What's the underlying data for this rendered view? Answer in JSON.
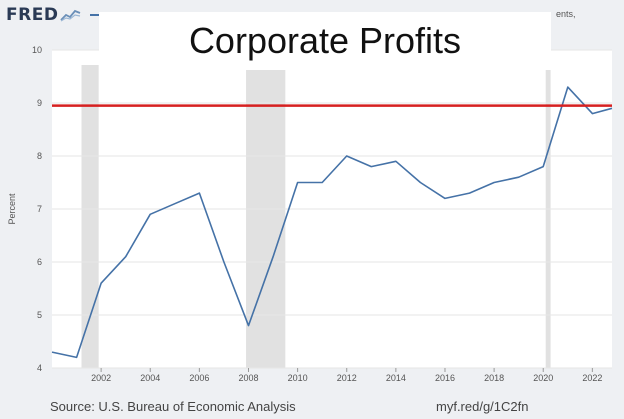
{
  "header": {
    "logo": "FRED",
    "header_tail": "ents,"
  },
  "title": "Corporate Profits",
  "source": "Source: U.S. Bureau of Economic Analysis",
  "short_url": "myf.red/g/1C2fn",
  "colors": {
    "series": "#4572a7",
    "reference": "#d62020",
    "recession": "#e1e1e1",
    "grid": "#e6e6e6"
  },
  "chart_data": {
    "type": "line",
    "title": "Corporate Profits",
    "xlabel": "",
    "ylabel": "Percent",
    "xlim": [
      2000,
      2022.8
    ],
    "ylim": [
      4,
      10
    ],
    "yticks": [
      4,
      5,
      6,
      7,
      8,
      9,
      10
    ],
    "xticks": [
      2002,
      2004,
      2006,
      2008,
      2010,
      2012,
      2014,
      2016,
      2018,
      2020,
      2022
    ],
    "grid": true,
    "series": [
      {
        "name": "Corporate Profits",
        "x": [
          2000,
          2001,
          2002,
          2003,
          2004,
          2005,
          2006,
          2007,
          2008,
          2009,
          2010,
          2011,
          2012,
          2013,
          2014,
          2015,
          2016,
          2017,
          2018,
          2019,
          2020,
          2021,
          2022,
          2022.8
        ],
        "values": [
          4.3,
          4.2,
          5.6,
          6.1,
          6.9,
          7.1,
          7.3,
          6.0,
          4.8,
          6.1,
          7.5,
          7.5,
          8.0,
          7.8,
          7.9,
          7.5,
          7.2,
          7.3,
          7.5,
          7.6,
          7.8,
          9.3,
          8.8,
          8.9
        ]
      }
    ],
    "reference_line": {
      "y": 8.95
    },
    "recessions": [
      [
        2001.2,
        2001.9
      ],
      [
        2007.9,
        2009.5
      ],
      [
        2020.1,
        2020.3
      ]
    ]
  }
}
